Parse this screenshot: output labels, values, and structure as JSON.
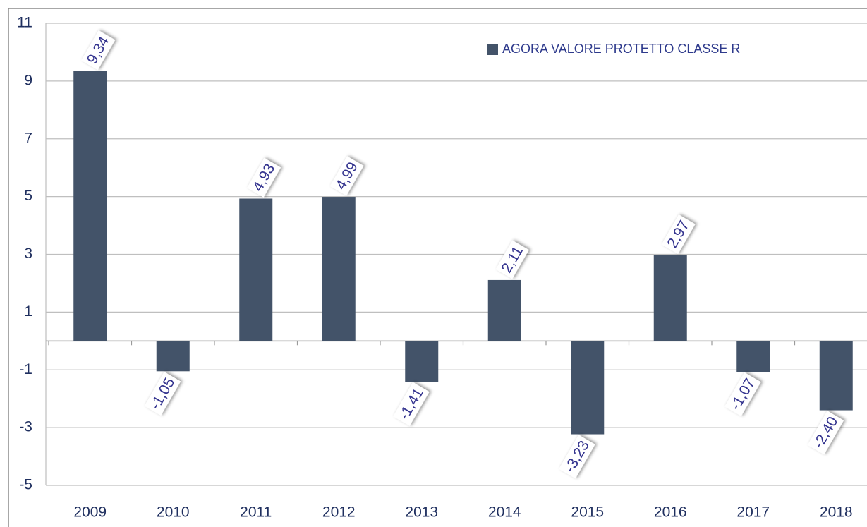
{
  "chart_data": {
    "type": "bar",
    "categories": [
      "2009",
      "2010",
      "2011",
      "2012",
      "2013",
      "2014",
      "2015",
      "2016",
      "2017",
      "2018"
    ],
    "series": [
      {
        "name": "AGORA VALORE PROTETTO CLASSE R",
        "color": "#435369",
        "values": [
          9.34,
          -1.05,
          4.93,
          4.99,
          -1.41,
          2.11,
          -3.23,
          2.97,
          -1.07,
          -2.4
        ],
        "value_labels": [
          "9,34",
          "-1,05",
          "4,93",
          "4,99",
          "-1,41",
          "2,11",
          "-3,23",
          "2,97",
          "-1,07",
          "-2,40"
        ]
      }
    ],
    "ylim": [
      -5,
      11
    ],
    "yticks": [
      -5,
      -3,
      -1,
      1,
      3,
      5,
      7,
      9,
      11
    ],
    "grid": true,
    "legend": "top-right"
  }
}
